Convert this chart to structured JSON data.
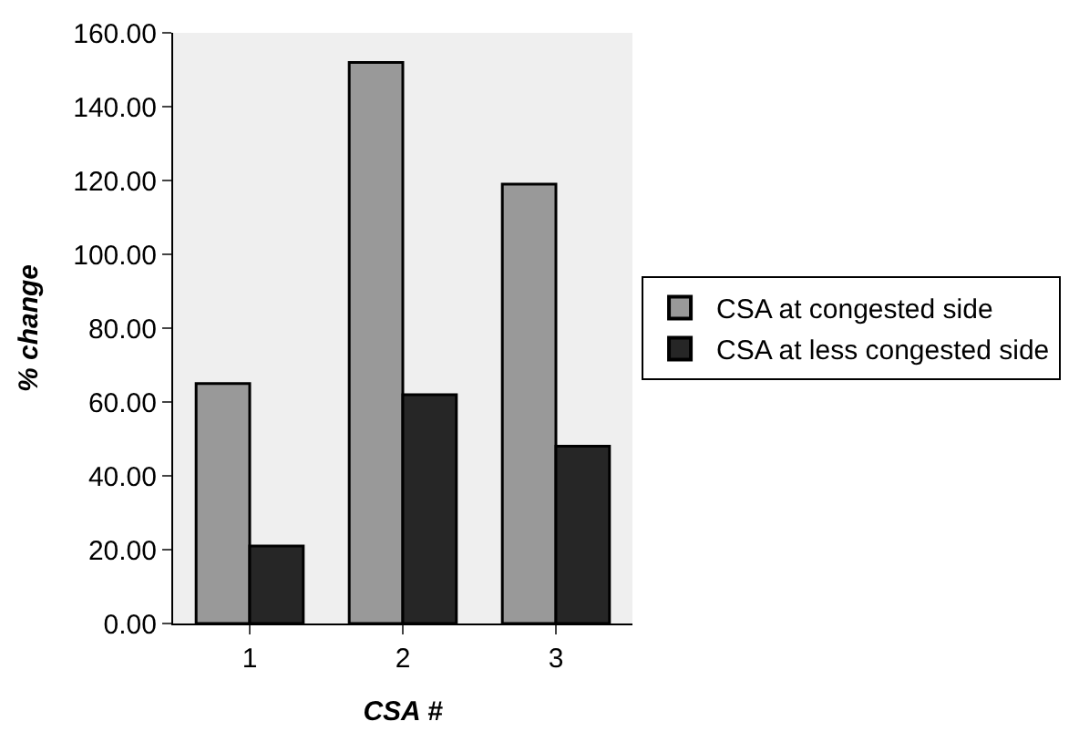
{
  "chart_data": {
    "type": "bar",
    "xlabel": "CSA #",
    "ylabel": "% change",
    "categories": [
      "1",
      "2",
      "3"
    ],
    "series": [
      {
        "name": "CSA at congested side",
        "color": "#999999",
        "values": [
          65,
          152,
          119
        ]
      },
      {
        "name": "CSA at less congested side",
        "color": "#262626",
        "values": [
          21,
          62,
          48
        ]
      }
    ],
    "ylim": [
      0,
      160
    ],
    "yticks": [
      {
        "value": 0,
        "label": "0.00"
      },
      {
        "value": 20,
        "label": "20.00"
      },
      {
        "value": 40,
        "label": "40.00"
      },
      {
        "value": 60,
        "label": "60.00"
      },
      {
        "value": 80,
        "label": "80.00"
      },
      {
        "value": 100,
        "label": "100.00"
      },
      {
        "value": 120,
        "label": "120.00"
      },
      {
        "value": 140,
        "label": "140.00"
      },
      {
        "value": 160,
        "label": "160.00"
      }
    ],
    "grid": false,
    "legend": "right"
  }
}
